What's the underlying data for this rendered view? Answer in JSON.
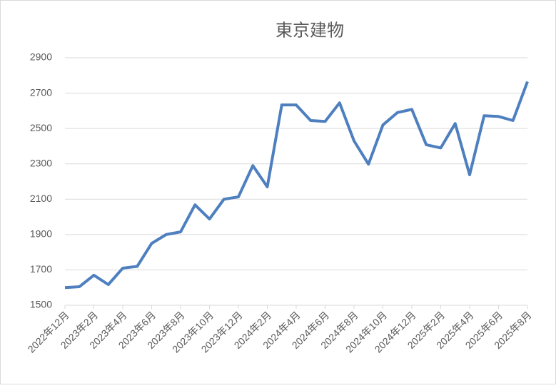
{
  "chart_data": {
    "type": "line",
    "title": "東京建物",
    "categories": [
      "2022年12月",
      null,
      "2023年2月",
      null,
      "2023年4月",
      null,
      "2023年6月",
      null,
      "2023年8月",
      null,
      "2023年10月",
      null,
      "2023年12月",
      null,
      "2024年2月",
      null,
      "2024年4月",
      null,
      "2024年6月",
      null,
      "2024年8月",
      null,
      "2024年10月",
      null,
      "2024年12月",
      null,
      "2025年2月",
      null,
      "2025年4月",
      null,
      "2025年6月",
      null,
      "2025年8月"
    ],
    "values": [
      1600,
      1605,
      1670,
      1617,
      1710,
      1720,
      1850,
      1900,
      1915,
      2068,
      1988,
      2100,
      2113,
      2290,
      2170,
      2633,
      2633,
      2545,
      2540,
      2645,
      2430,
      2298,
      2520,
      2590,
      2608,
      2408,
      2390,
      2528,
      2238,
      2572,
      2568,
      2545,
      2765
    ],
    "color": "#4e7fbf",
    "ylim": [
      1500,
      2900
    ],
    "yticks": [
      1500,
      1700,
      1900,
      2100,
      2300,
      2500,
      2700,
      2900
    ],
    "grid": true
  }
}
